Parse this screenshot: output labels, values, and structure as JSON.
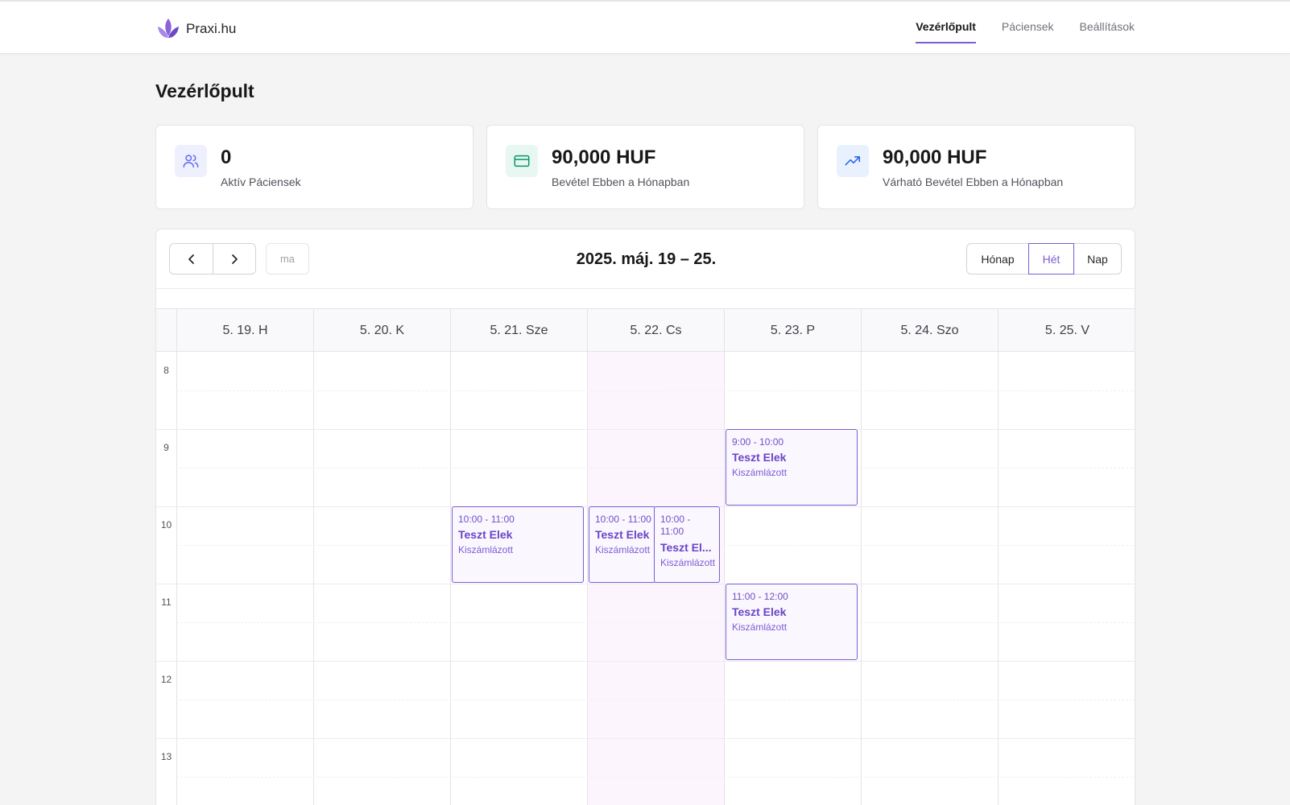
{
  "app": {
    "name": "Praxi.hu",
    "nav": [
      {
        "label": "Vezérlőpult",
        "active": true
      },
      {
        "label": "Páciensek",
        "active": false
      },
      {
        "label": "Beállítások",
        "active": false
      }
    ]
  },
  "page": {
    "title": "Vezérlőpult"
  },
  "stats": [
    {
      "value": "0",
      "label": "Aktív Páciensek",
      "icon": "users-icon"
    },
    {
      "value": "90,000 HUF",
      "label": "Bevétel Ebben a Hónapban",
      "icon": "credit-card-icon"
    },
    {
      "value": "90,000 HUF",
      "label": "Várható Bevétel Ebben a Hónapban",
      "icon": "trending-up-icon"
    }
  ],
  "calendar": {
    "today_label": "ma",
    "title": "2025. máj. 19 – 25.",
    "views": [
      {
        "label": "Hónap",
        "active": false
      },
      {
        "label": "Hét",
        "active": true
      },
      {
        "label": "Nap",
        "active": false
      }
    ],
    "days": [
      "5. 19. H",
      "5. 20. K",
      "5. 21. Sze",
      "5. 22. Cs",
      "5. 23. P",
      "5. 24. Szo",
      "5. 25. V"
    ],
    "today_index": 3,
    "hours": [
      "8",
      "9",
      "10",
      "11",
      "12",
      "13"
    ],
    "events": [
      {
        "time": "9:00 - 10:00",
        "title": "Teszt Elek",
        "status": "Kiszámlázott"
      },
      {
        "time": "10:00 - 11:00",
        "title": "Teszt Elek",
        "status": "Kiszámlázott"
      },
      {
        "time": "10:00 - 11:00",
        "title": "Teszt Elek",
        "status": "Kiszámlázott"
      },
      {
        "time": "10:00 - 11:00",
        "title": "Teszt El...",
        "status": "Kiszámlázott"
      },
      {
        "time": "11:00 - 12:00",
        "title": "Teszt Elek",
        "status": "Kiszámlázott"
      }
    ]
  },
  "colors": {
    "accent": "#7c5cd6",
    "today_bg": "#fcf5fd"
  }
}
